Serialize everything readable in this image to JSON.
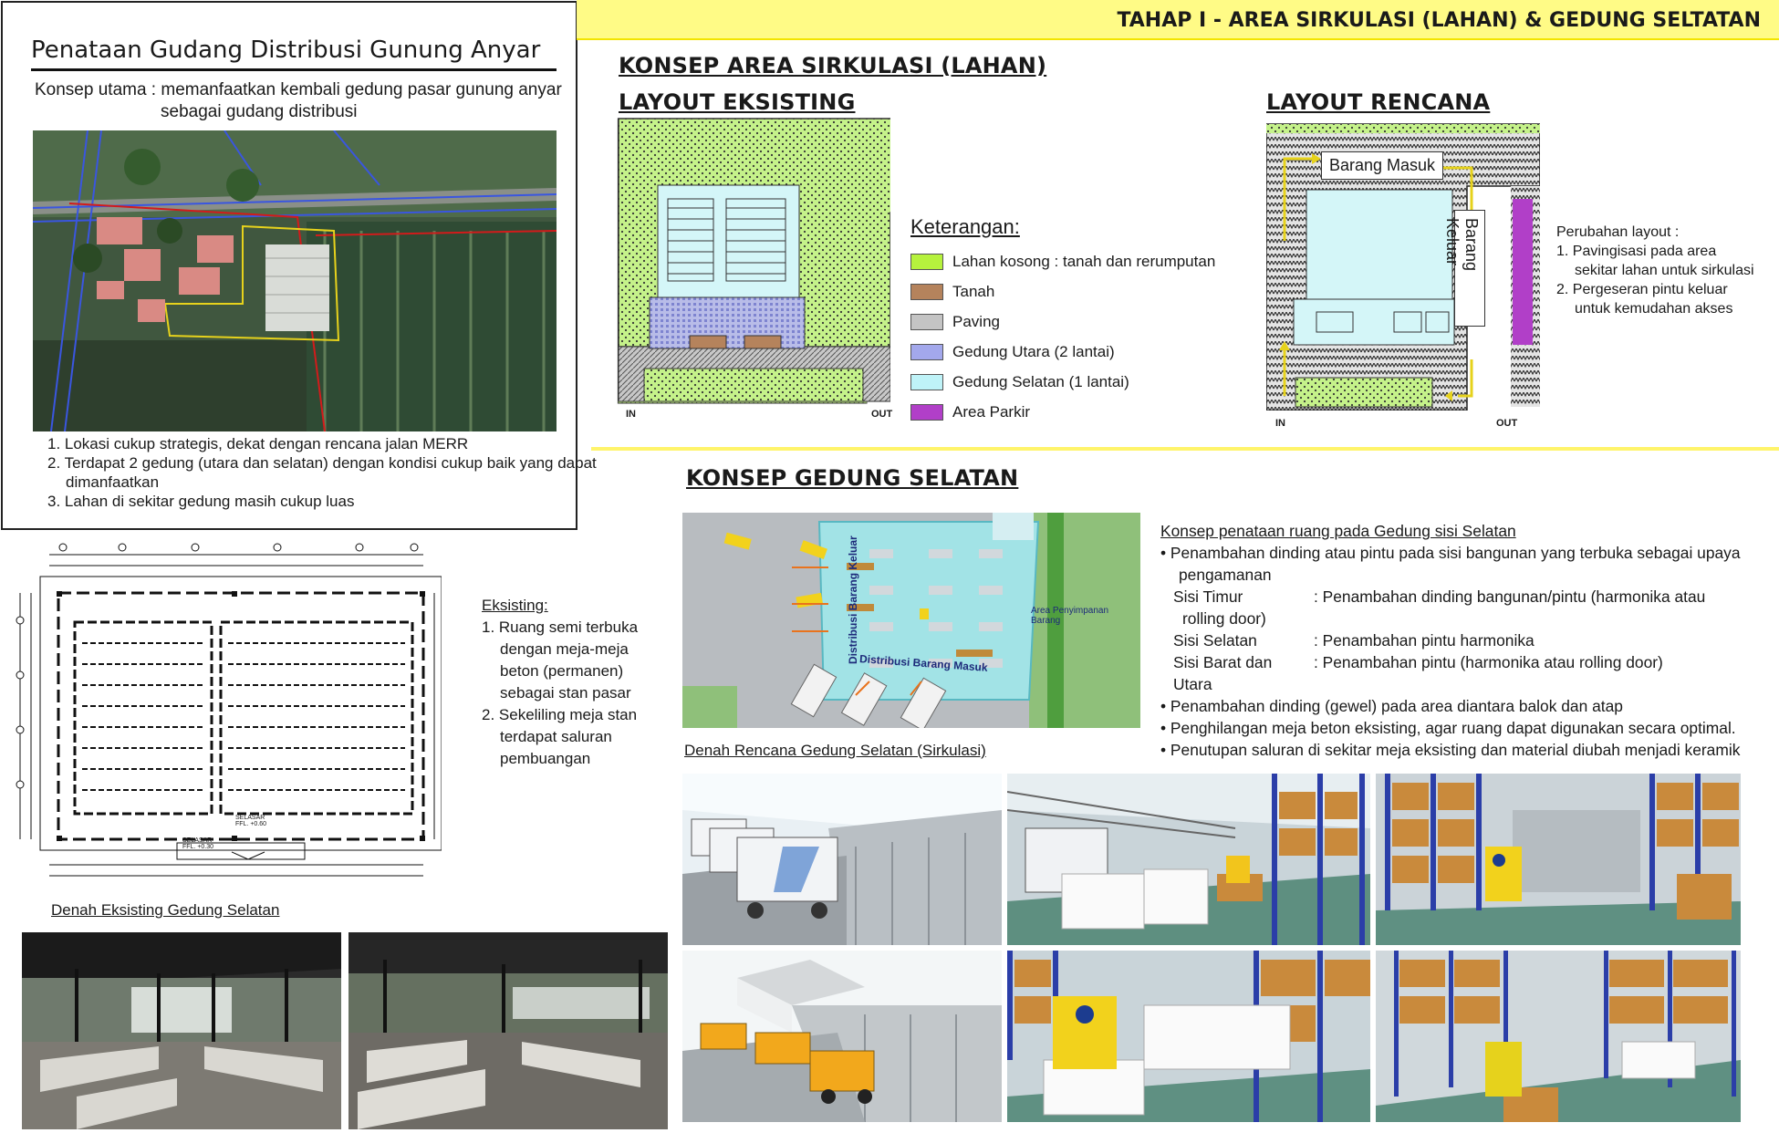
{
  "top_left": {
    "title": "Penataan Gudang Distribusi Gunung Anyar",
    "concept_line1": "Konsep utama : memanfaatkan kembali gedung pasar gunung anyar",
    "concept_line2": "sebagai gudang distribusi",
    "points": [
      "1. Lokasi cukup strategis, dekat dengan rencana jalan MERR",
      "2. Terdapat 2 gedung (utara dan selatan) dengan kondisi cukup baik yang dapat",
      "dimanfaatkan",
      "3. Lahan di sekitar gedung masih cukup luas"
    ]
  },
  "banner": {
    "text": "TAHAP I - AREA SIRKULASI (LAHAN) & GEDUNG SELTATAN"
  },
  "lahan": {
    "heading": "KONSEP AREA SIRKULASI (LAHAN)",
    "existing_heading": "LAYOUT EKSISTING",
    "plan_heading": "LAYOUT RENCANA",
    "in_label": "IN",
    "out_label": "OUT",
    "legend_title": "Keterangan:",
    "legend": [
      {
        "label": "Lahan kosong : tanah dan rerumputan",
        "color": "#b6f23d"
      },
      {
        "label": "Tanah",
        "color": "#b5835c"
      },
      {
        "label": "Paving",
        "color": "#c4c4c4"
      },
      {
        "label": "Gedung Utara (2 lantai)",
        "color": "#a3a8ec"
      },
      {
        "label": "Gedung Selatan (1 lantai)",
        "color": "#bff3f8"
      },
      {
        "label": "Area Parkir",
        "color": "#b13fc8"
      }
    ],
    "barang_masuk": "Barang Masuk",
    "barang_keluar": "Barang Keluar",
    "changes_title": "Perubahan layout :",
    "changes": [
      "1. Pavingisasi pada area",
      "sekitar lahan untuk sirkulasi",
      "2. Pergeseran pintu keluar",
      "untuk kemudahan akses"
    ]
  },
  "denah_eksisting": {
    "selasar_1": "SELASAR",
    "ffl_1": "FFL. +0.60",
    "selasar_2": "SELASAR",
    "ffl_2": "FFL. +0.30",
    "caption": "Denah Eksisting Gedung Selatan",
    "notes_title": "Eksisting:",
    "notes": [
      "1. Ruang semi terbuka",
      "dengan meja-meja",
      "beton (permanen)",
      "sebagai stan pasar",
      "2. Sekeliling meja stan",
      "terdapat saluran",
      "pembuangan"
    ]
  },
  "gedung_selatan": {
    "heading": "KONSEP GEDUNG SELATAN",
    "render_label_1": "Distribusi Barang Keluar",
    "render_label_2": "Distribusi Barang Masuk",
    "render_label_3": "Area Penyimpanan Barang",
    "concept_title": "Konsep penataan ruang pada Gedung sisi Selatan",
    "concept_lines": [
      "• Penambahan dinding atau pintu pada sisi bangunan yang terbuka sebagai upaya",
      "pengamanan",
      "Sisi Timur",
      ": Penambahan dinding bangunan/pintu (harmonika atau",
      "rolling door)",
      "Sisi Selatan",
      ": Penambahan pintu harmonika",
      "Sisi Barat dan Utara",
      ": Penambahan pintu (harmonika atau rolling door)",
      "• Penambahan dinding (gewel) pada area diantara balok dan atap",
      "• Penghilangan meja beton eksisting, agar ruang dapat digunakan secara optimal.",
      "• Penutupan saluran di sekitar meja eksisting dan material diubah menjadi keramik"
    ],
    "denah_rencana_caption": "Denah Rencana Gedung Selatan (Sirkulasi)"
  }
}
